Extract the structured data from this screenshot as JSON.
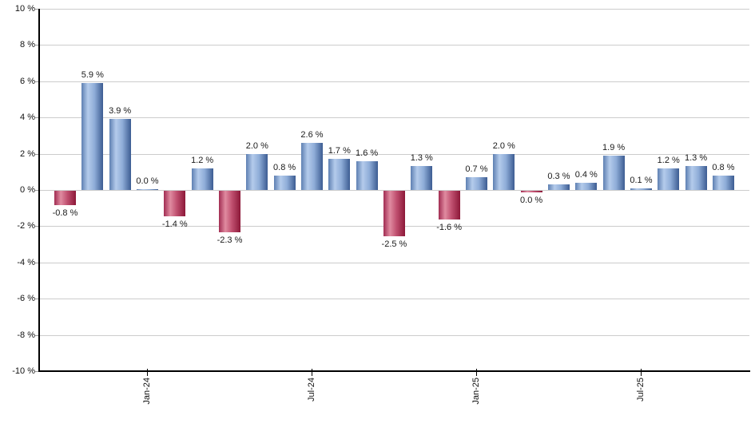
{
  "chart_data": {
    "type": "bar",
    "title": "",
    "xlabel": "",
    "ylabel": "",
    "ylim": [
      -10,
      10
    ],
    "y_tick_step": 2,
    "y_tick_suffix": " %",
    "grid": "horizontal",
    "legend": "none",
    "x_axis_tick_labels": [
      "Jan-24",
      "Jul-24",
      "Jan-25",
      "Jul-25"
    ],
    "colors": {
      "positive_bar_edge": "#3c5c92",
      "positive_bar_highlight": "#b4cbeb",
      "negative_bar_edge": "#8c1838",
      "negative_bar_highlight": "#e08ba0",
      "gridline": "#cccccc",
      "axis": "#000000",
      "label_text": "#1a1a1a"
    },
    "points": [
      {
        "month": "Oct-23",
        "value": -0.8,
        "label": "-0.8 %",
        "direction": "down"
      },
      {
        "month": "Nov-23",
        "value": 5.9,
        "label": "5.9 %",
        "direction": "up"
      },
      {
        "month": "Dec-23",
        "value": 3.9,
        "label": "3.9 %",
        "direction": "up"
      },
      {
        "month": "Jan-24",
        "value": 0.05,
        "label": "0.0 %",
        "direction": "up"
      },
      {
        "month": "Feb-24",
        "value": -1.4,
        "label": "-1.4 %",
        "direction": "down"
      },
      {
        "month": "Mar-24",
        "value": 1.2,
        "label": "1.2 %",
        "direction": "up"
      },
      {
        "month": "Apr-24",
        "value": -2.3,
        "label": "-2.3 %",
        "direction": "down"
      },
      {
        "month": "May-24",
        "value": 2.0,
        "label": "2.0 %",
        "direction": "up"
      },
      {
        "month": "Jun-24",
        "value": 0.8,
        "label": "0.8 %",
        "direction": "up"
      },
      {
        "month": "Jul-24",
        "value": 2.6,
        "label": "2.6 %",
        "direction": "up"
      },
      {
        "month": "Aug-24",
        "value": 1.7,
        "label": "1.7 %",
        "direction": "up"
      },
      {
        "month": "Sep-24",
        "value": 1.6,
        "label": "1.6 %",
        "direction": "up"
      },
      {
        "month": "Oct-24",
        "value": -2.5,
        "label": "-2.5 %",
        "direction": "down"
      },
      {
        "month": "Nov-24",
        "value": 1.3,
        "label": "1.3 %",
        "direction": "up"
      },
      {
        "month": "Dec-24",
        "value": -1.6,
        "label": "-1.6 %",
        "direction": "down"
      },
      {
        "month": "Jan-25",
        "value": 0.7,
        "label": "0.7 %",
        "direction": "up"
      },
      {
        "month": "Feb-25",
        "value": 2.0,
        "label": "2.0 %",
        "direction": "up"
      },
      {
        "month": "Mar-25",
        "value": -0.05,
        "label": "0.0 %",
        "direction": "down"
      },
      {
        "month": "Apr-25",
        "value": 0.3,
        "label": "0.3 %",
        "direction": "up"
      },
      {
        "month": "May-25",
        "value": 0.4,
        "label": "0.4 %",
        "direction": "up"
      },
      {
        "month": "Jun-25",
        "value": 1.9,
        "label": "1.9 %",
        "direction": "up"
      },
      {
        "month": "Jul-25",
        "value": 0.1,
        "label": "0.1 %",
        "direction": "up"
      },
      {
        "month": "Aug-25",
        "value": 1.2,
        "label": "1.2 %",
        "direction": "up"
      },
      {
        "month": "Sep-25",
        "value": 1.3,
        "label": "1.3 %",
        "direction": "up"
      },
      {
        "month": "Oct-25",
        "value": 0.8,
        "label": "0.8 %",
        "direction": "up"
      }
    ]
  }
}
